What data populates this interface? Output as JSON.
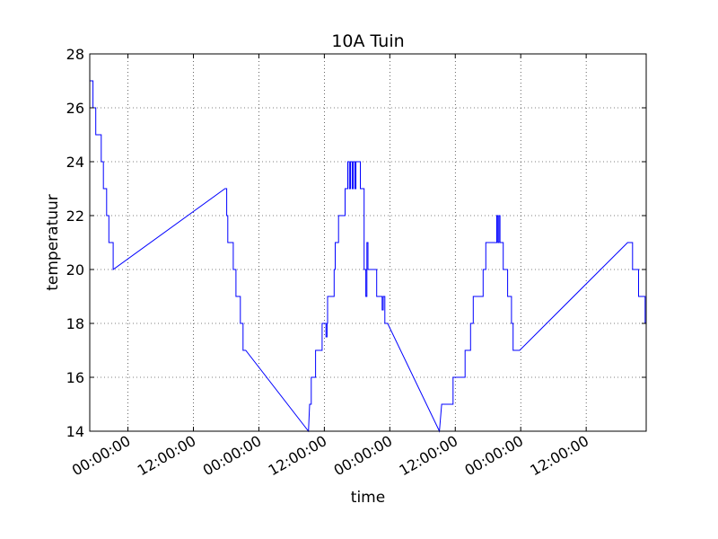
{
  "chart_data": {
    "type": "line",
    "title": "10A Tuin",
    "xlabel": "time",
    "ylabel": "temperatuur",
    "ylim": [
      14,
      28
    ],
    "yticks": [
      14,
      16,
      18,
      20,
      22,
      24,
      26,
      28
    ],
    "xticks": [
      {
        "x": 9.8,
        "label": "00:00:00"
      },
      {
        "x": 21.8,
        "label": "12:00:00"
      },
      {
        "x": 33.8,
        "label": "00:00:00"
      },
      {
        "x": 45.8,
        "label": "12:00:00"
      },
      {
        "x": 57.8,
        "label": "00:00:00"
      },
      {
        "x": 69.8,
        "label": "12:00:00"
      },
      {
        "x": 81.8,
        "label": "00:00:00"
      },
      {
        "x": 93.8,
        "label": "12:00:00"
      }
    ],
    "xlim": [
      2.8,
      104.8
    ],
    "grid": true,
    "series": [
      {
        "color": "#0000ff",
        "points": [
          [
            2.8,
            27
          ],
          [
            3.4,
            27
          ],
          [
            3.4,
            26
          ],
          [
            3.9,
            26
          ],
          [
            3.9,
            25
          ],
          [
            4.9,
            25
          ],
          [
            4.9,
            24
          ],
          [
            5.3,
            24
          ],
          [
            5.3,
            23
          ],
          [
            5.9,
            23
          ],
          [
            5.9,
            22
          ],
          [
            6.3,
            22
          ],
          [
            6.3,
            21
          ],
          [
            7.1,
            21
          ],
          [
            7.1,
            20
          ],
          [
            27.6,
            23
          ],
          [
            27.9,
            23
          ],
          [
            27.9,
            22
          ],
          [
            28.1,
            22
          ],
          [
            28.1,
            21
          ],
          [
            29.1,
            21
          ],
          [
            29.1,
            20
          ],
          [
            29.6,
            20
          ],
          [
            29.6,
            19
          ],
          [
            30.4,
            19
          ],
          [
            30.4,
            18
          ],
          [
            30.9,
            18
          ],
          [
            30.9,
            17
          ],
          [
            31.4,
            17
          ],
          [
            42.9,
            14
          ],
          [
            43.1,
            15
          ],
          [
            43.4,
            15
          ],
          [
            43.4,
            16
          ],
          [
            44.2,
            16
          ],
          [
            44.2,
            17
          ],
          [
            45.4,
            17
          ],
          [
            45.4,
            18
          ],
          [
            46.1,
            18
          ],
          [
            46.1,
            17.5
          ],
          [
            46.3,
            17.5
          ],
          [
            46.3,
            18
          ],
          [
            46.4,
            18
          ],
          [
            46.4,
            19
          ],
          [
            47.6,
            19
          ],
          [
            47.6,
            20
          ],
          [
            47.8,
            20
          ],
          [
            47.8,
            21
          ],
          [
            48.4,
            21
          ],
          [
            48.4,
            22
          ],
          [
            49.6,
            22
          ],
          [
            49.6,
            23
          ],
          [
            50.1,
            23
          ],
          [
            50.1,
            24
          ],
          [
            50.4,
            24
          ],
          [
            50.4,
            23
          ],
          [
            50.6,
            23
          ],
          [
            50.6,
            24
          ],
          [
            50.9,
            24
          ],
          [
            50.9,
            23
          ],
          [
            51.1,
            23
          ],
          [
            51.1,
            24
          ],
          [
            51.4,
            24
          ],
          [
            51.4,
            23
          ],
          [
            51.6,
            23
          ],
          [
            51.6,
            24
          ],
          [
            52.4,
            24
          ],
          [
            52.4,
            23
          ],
          [
            53.1,
            23
          ],
          [
            53.1,
            20
          ],
          [
            53.4,
            20
          ],
          [
            53.4,
            19
          ],
          [
            53.6,
            19
          ],
          [
            53.6,
            21
          ],
          [
            53.8,
            21
          ],
          [
            53.8,
            20
          ],
          [
            55.4,
            20
          ],
          [
            55.4,
            19
          ],
          [
            56.4,
            19
          ],
          [
            56.4,
            18.5
          ],
          [
            56.6,
            18.5
          ],
          [
            56.6,
            19
          ],
          [
            56.9,
            19
          ],
          [
            56.9,
            18
          ],
          [
            57.4,
            18
          ],
          [
            66.9,
            14
          ],
          [
            67.3,
            15
          ],
          [
            69.4,
            15
          ],
          [
            69.4,
            16
          ],
          [
            69.6,
            16
          ],
          [
            69.6,
            16
          ],
          [
            71.6,
            16
          ],
          [
            71.6,
            17
          ],
          [
            72.6,
            17
          ],
          [
            72.6,
            18
          ],
          [
            73.1,
            18
          ],
          [
            73.1,
            19
          ],
          [
            74.9,
            19
          ],
          [
            74.9,
            20
          ],
          [
            75.4,
            20
          ],
          [
            75.4,
            21
          ],
          [
            77.4,
            21
          ],
          [
            77.4,
            22
          ],
          [
            77.6,
            22
          ],
          [
            77.6,
            21
          ],
          [
            77.8,
            21
          ],
          [
            77.8,
            22
          ],
          [
            78.0,
            22
          ],
          [
            78.0,
            21
          ],
          [
            78.6,
            21
          ],
          [
            78.6,
            20
          ],
          [
            79.4,
            20
          ],
          [
            79.4,
            19
          ],
          [
            80.1,
            19
          ],
          [
            80.1,
            18
          ],
          [
            80.4,
            18
          ],
          [
            80.4,
            17
          ],
          [
            81.6,
            17
          ],
          [
            101.4,
            21
          ],
          [
            102.3,
            21
          ],
          [
            102.3,
            20
          ],
          [
            103.4,
            20
          ],
          [
            103.4,
            19
          ],
          [
            104.6,
            19
          ],
          [
            104.6,
            18
          ],
          [
            104.8,
            18
          ],
          [
            104.8,
            17
          ]
        ]
      }
    ]
  }
}
